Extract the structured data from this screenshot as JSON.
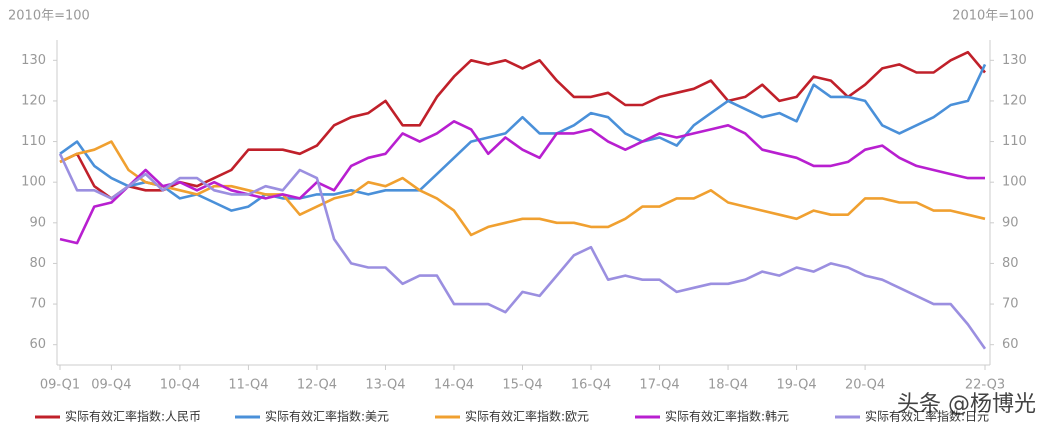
{
  "chart_data": {
    "type": "line",
    "y_label": "2010年=100",
    "y2_label": "2010年=100",
    "watermark": "头条 @杨博光",
    "categories": [
      "09-Q1",
      null,
      null,
      "09-Q4",
      null,
      null,
      null,
      "10-Q4",
      null,
      null,
      null,
      "11-Q4",
      null,
      null,
      null,
      "12-Q4",
      null,
      null,
      null,
      "13-Q4",
      null,
      null,
      null,
      "14-Q4",
      null,
      null,
      null,
      "15-Q4",
      null,
      null,
      null,
      "16-Q4",
      null,
      null,
      null,
      "17-Q4",
      null,
      null,
      null,
      "18-Q4",
      null,
      null,
      null,
      "19-Q4",
      null,
      null,
      null,
      "20-Q4",
      null,
      null,
      null,
      null,
      null,
      null,
      "22-Q3"
    ],
    "ylim": [
      55,
      135
    ],
    "yticks": [
      60,
      70,
      80,
      90,
      100,
      110,
      120,
      130
    ],
    "y2lim": [
      55,
      135
    ],
    "y2ticks": [
      60,
      70,
      80,
      90,
      100,
      110,
      120,
      130
    ],
    "grid": false,
    "legend": "bottom",
    "series": [
      {
        "name": "实际有效汇率指数:人民币",
        "color": "#c0202a",
        "values": [
          105,
          107,
          99,
          96,
          99,
          98,
          98,
          100,
          99,
          101,
          103,
          108,
          108,
          108,
          107,
          109,
          114,
          116,
          117,
          120,
          114,
          114,
          121,
          126,
          130,
          129,
          130,
          128,
          130,
          125,
          121,
          121,
          122,
          119,
          119,
          121,
          122,
          123,
          125,
          120,
          121,
          124,
          120,
          121,
          126,
          125,
          121,
          124,
          128,
          129,
          127,
          127,
          130,
          132,
          127
        ]
      },
      {
        "name": "实际有效汇率指数:美元",
        "color": "#4a90d9",
        "values": [
          107,
          110,
          104,
          101,
          99,
          100,
          99,
          96,
          97,
          95,
          93,
          94,
          97,
          96,
          96,
          97,
          97,
          98,
          97,
          98,
          98,
          98,
          102,
          106,
          110,
          111,
          112,
          116,
          112,
          112,
          114,
          117,
          116,
          112,
          110,
          111,
          109,
          114,
          117,
          120,
          118,
          116,
          117,
          115,
          124,
          121,
          121,
          120,
          114,
          112,
          114,
          116,
          119,
          120,
          129
        ]
      },
      {
        "name": "实际有效汇率指数:欧元",
        "color": "#f0a030",
        "values": [
          105,
          107,
          108,
          110,
          103,
          100,
          99,
          98,
          97,
          99,
          99,
          98,
          97,
          97,
          92,
          94,
          96,
          97,
          100,
          99,
          101,
          98,
          96,
          93,
          87,
          89,
          90,
          91,
          91,
          90,
          90,
          89,
          89,
          91,
          94,
          94,
          96,
          96,
          98,
          95,
          94,
          93,
          92,
          91,
          93,
          92,
          92,
          96,
          96,
          95,
          95,
          93,
          93,
          92,
          91
        ]
      },
      {
        "name": "实际有效汇率指数:韩元",
        "color": "#b81fd0",
        "values": [
          86,
          85,
          94,
          95,
          99,
          103,
          99,
          100,
          98,
          100,
          98,
          97,
          96,
          97,
          96,
          100,
          98,
          104,
          106,
          107,
          112,
          110,
          112,
          115,
          113,
          107,
          111,
          108,
          106,
          112,
          112,
          113,
          110,
          108,
          110,
          112,
          111,
          112,
          113,
          114,
          112,
          108,
          107,
          106,
          104,
          104,
          105,
          108,
          109,
          106,
          104,
          103,
          102,
          101,
          101
        ]
      },
      {
        "name": "实际有效汇率指数:日元",
        "color": "#9b8fe0",
        "values": [
          107,
          98,
          98,
          96,
          99,
          102,
          98,
          101,
          101,
          98,
          97,
          97,
          99,
          98,
          103,
          101,
          86,
          80,
          79,
          79,
          75,
          77,
          77,
          70,
          70,
          70,
          68,
          73,
          72,
          77,
          82,
          84,
          76,
          77,
          76,
          76,
          73,
          74,
          75,
          75,
          76,
          78,
          77,
          79,
          78,
          80,
          79,
          77,
          76,
          74,
          72,
          70,
          70,
          65,
          59
        ]
      }
    ]
  }
}
